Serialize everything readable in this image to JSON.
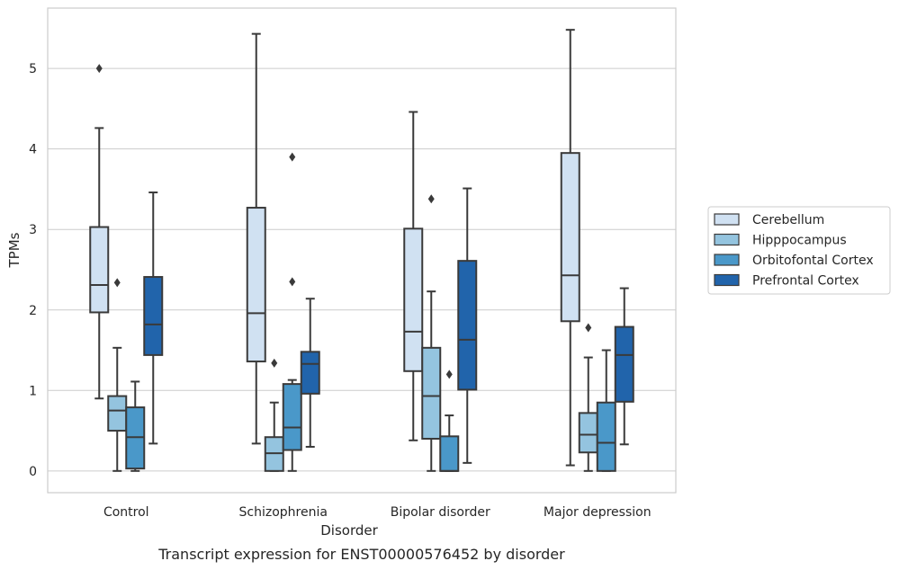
{
  "caption": "Transcript expression for ENST00000576452 by disorder",
  "chart_data": {
    "type": "box",
    "xlabel": "Disorder",
    "ylabel": "TPMs",
    "ylim": [
      -0.27,
      5.75
    ],
    "yticks": [
      0,
      1,
      2,
      3,
      4,
      5
    ],
    "grid": "horizontal",
    "legend_position": "right",
    "categories": [
      "Control",
      "Schizophrenia",
      "Bipolar disorder",
      "Major depression"
    ],
    "series": [
      {
        "name": "Cerebellum",
        "color": "#d0e1f2",
        "boxes": [
          {
            "whislo": 0.9,
            "q1": 1.97,
            "med": 2.31,
            "q3": 3.03,
            "whishi": 4.26,
            "fliers": [
              5.0
            ]
          },
          {
            "whislo": 0.34,
            "q1": 1.36,
            "med": 1.96,
            "q3": 3.27,
            "whishi": 5.43,
            "fliers": []
          },
          {
            "whislo": 0.38,
            "q1": 1.24,
            "med": 1.73,
            "q3": 3.01,
            "whishi": 4.46,
            "fliers": []
          },
          {
            "whislo": 0.07,
            "q1": 1.86,
            "med": 2.43,
            "q3": 3.95,
            "whishi": 5.48,
            "fliers": []
          }
        ]
      },
      {
        "name": "Hipppocampus",
        "color": "#94c4df",
        "boxes": [
          {
            "whislo": 0.0,
            "q1": 0.5,
            "med": 0.75,
            "q3": 0.93,
            "whishi": 1.53,
            "fliers": [
              2.34
            ]
          },
          {
            "whislo": 0.0,
            "q1": 0.0,
            "med": 0.22,
            "q3": 0.42,
            "whishi": 0.85,
            "fliers": [
              1.34
            ]
          },
          {
            "whislo": 0.0,
            "q1": 0.4,
            "med": 0.93,
            "q3": 1.53,
            "whishi": 2.23,
            "fliers": [
              3.38
            ]
          },
          {
            "whislo": 0.0,
            "q1": 0.23,
            "med": 0.45,
            "q3": 0.72,
            "whishi": 1.41,
            "fliers": [
              1.78
            ]
          }
        ]
      },
      {
        "name": "Orbitofontal Cortex",
        "color": "#4a98c9",
        "boxes": [
          {
            "whislo": 0.0,
            "q1": 0.03,
            "med": 0.42,
            "q3": 0.79,
            "whishi": 1.11,
            "fliers": []
          },
          {
            "whislo": 0.0,
            "q1": 0.26,
            "med": 0.54,
            "q3": 1.08,
            "whishi": 1.13,
            "fliers": [
              2.35,
              3.9
            ]
          },
          {
            "whislo": 0.0,
            "q1": 0.0,
            "med": 0.0,
            "q3": 0.43,
            "whishi": 0.69,
            "fliers": [
              1.2
            ]
          },
          {
            "whislo": 0.0,
            "q1": 0.0,
            "med": 0.35,
            "q3": 0.85,
            "whishi": 1.5,
            "fliers": []
          }
        ]
      },
      {
        "name": "Prefrontal Cortex",
        "color": "#2164ab",
        "boxes": [
          {
            "whislo": 0.34,
            "q1": 1.44,
            "med": 1.82,
            "q3": 2.41,
            "whishi": 3.46,
            "fliers": []
          },
          {
            "whislo": 0.3,
            "q1": 0.96,
            "med": 1.33,
            "q3": 1.48,
            "whishi": 2.14,
            "fliers": []
          },
          {
            "whislo": 0.1,
            "q1": 1.01,
            "med": 1.63,
            "q3": 2.61,
            "whishi": 3.51,
            "fliers": []
          },
          {
            "whislo": 0.33,
            "q1": 0.86,
            "med": 1.44,
            "q3": 1.79,
            "whishi": 2.27,
            "fliers": []
          }
        ]
      }
    ]
  }
}
